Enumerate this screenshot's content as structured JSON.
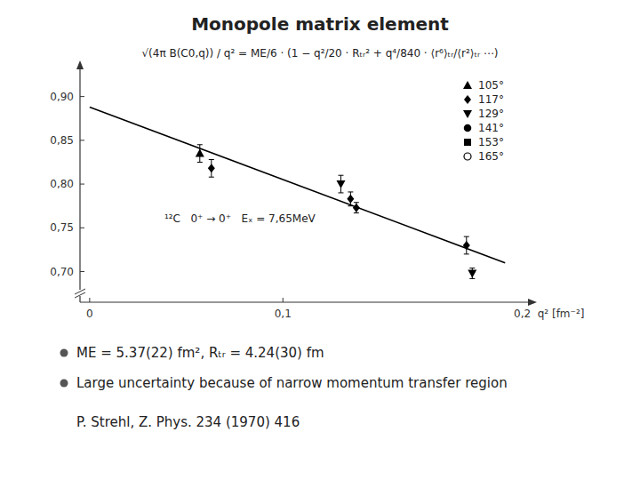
{
  "chart_data": {
    "type": "scatter",
    "title": "Monopole matrix element",
    "x_label": "0,2  q² [fm⁻²]",
    "annotations": [
      "√(4π B(C0,q)) / q² = ME/6 · (1 − q²/20 · Rₜᵣ² + q⁴/840 · ⟨r⁶⟩ₜᵣ/⟨r²⟩ₜᵣ ⋯)",
      "¹²C   0⁺ → 0⁺   Eₓ = 7,65MeV"
    ],
    "notes": [
      "ME = 5.37(22) fm², Rₜᵣ = 4.24(30) fm",
      "Large uncertainty because of narrow momentum transfer region"
    ],
    "source": "P. Strehl, Z. Phys. 234 (1970) 416",
    "xlim": [
      -0.005,
      0.225
    ],
    "ylim": [
      0.665,
      0.925
    ],
    "xticks": [
      0,
      {
        "value": 0.1,
        "label": "0,1"
      }
    ],
    "yticks": [
      {
        "value": 0.7,
        "label": "0,70"
      },
      {
        "value": 0.75,
        "label": "0,75"
      },
      {
        "value": 0.8,
        "label": "0,80"
      },
      {
        "value": 0.85,
        "label": "0,85"
      },
      {
        "value": 0.9,
        "label": "0,90"
      }
    ],
    "grid": false,
    "legend": "upper right",
    "series": [
      {
        "type": "line",
        "color": "#000000",
        "x": [
          0.0,
          0.215
        ],
        "values": [
          0.888,
          0.71
        ]
      },
      {
        "type": "scatter",
        "name": "105°",
        "marker": "triangle-up",
        "color": "#000000",
        "x": [
          0.057
        ],
        "values": [
          0.835
        ],
        "errors": [
          0.01
        ]
      },
      {
        "type": "scatter",
        "name": "117°",
        "marker": "diamond",
        "color": "#000000",
        "x": [
          0.063,
          0.135,
          0.138,
          0.195
        ],
        "values": [
          0.818,
          0.783,
          0.773,
          0.73
        ],
        "errors": [
          0.01,
          0.008,
          0.006,
          0.01
        ]
      },
      {
        "type": "scatter",
        "name": "129°",
        "marker": "triangle-down",
        "color": "#000000",
        "x": [
          0.13,
          0.198
        ],
        "values": [
          0.8,
          0.698
        ],
        "errors": [
          0.01,
          0.006
        ]
      },
      {
        "type": "scatter",
        "name": "141°",
        "marker": "circle",
        "color": "#000000",
        "x": [],
        "values": [],
        "errors": []
      },
      {
        "type": "scatter",
        "name": "153°",
        "marker": "square",
        "color": "#000000",
        "x": [],
        "values": [],
        "errors": []
      },
      {
        "type": "scatter",
        "name": "165°",
        "marker": "circle-open",
        "color": "#000000",
        "x": [],
        "values": [],
        "errors": []
      }
    ]
  }
}
